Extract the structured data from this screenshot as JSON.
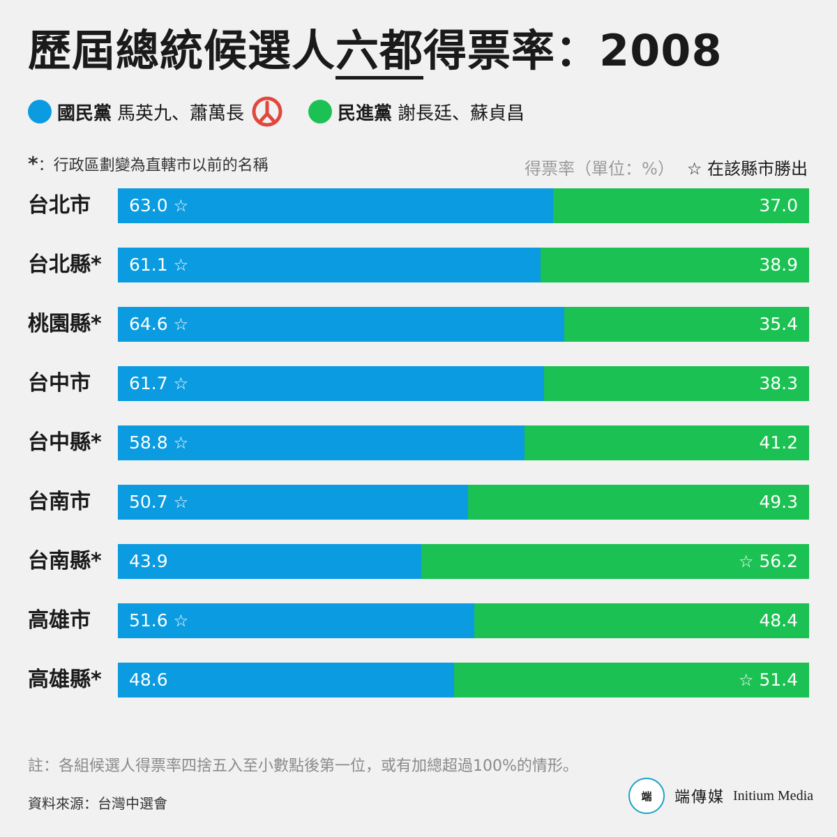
{
  "title": {
    "part1": "歷屆總統候選人",
    "underlined": "六都",
    "part2": "得票率：2008"
  },
  "legend": {
    "kmt": {
      "party": "國民黨",
      "candidates": "馬英九、蕭萬長",
      "color": "#0a9be0"
    },
    "dpp": {
      "party": "民進黨",
      "candidates": "謝長廷、蘇貞昌",
      "color": "#1bc152"
    },
    "winner_icon": "ballot-stamp-icon",
    "winner_icon_color": "#e0483e"
  },
  "note_top": {
    "asterisk": "*",
    "text": "：行政區劃變為直轄市以前的名稱"
  },
  "unit": {
    "label": "得票率（單位：%）",
    "star_note": "☆ 在該縣市勝出"
  },
  "chart_data": {
    "type": "bar",
    "stacked": true,
    "orientation": "horizontal",
    "categories": [
      "台北市",
      "台北縣*",
      "桃園縣*",
      "台中市",
      "台中縣*",
      "台南市",
      "台南縣*",
      "高雄市",
      "高雄縣*"
    ],
    "series": [
      {
        "name": "國民黨",
        "color": "#0a9be0",
        "values": [
          63.0,
          61.1,
          64.6,
          61.7,
          58.8,
          50.7,
          43.9,
          51.6,
          48.6
        ],
        "labels": [
          "63.0",
          "61.1",
          "64.6",
          "61.7",
          "58.8",
          "50.7",
          "43.9",
          "51.6",
          "48.6"
        ]
      },
      {
        "name": "民進黨",
        "color": "#1bc152",
        "values": [
          37.0,
          38.9,
          35.4,
          38.3,
          41.2,
          49.3,
          56.2,
          48.4,
          51.4
        ],
        "labels": [
          "37.0",
          "38.9",
          "35.4",
          "38.3",
          "41.2",
          "49.3",
          "56.2",
          "48.4",
          "51.4"
        ]
      }
    ],
    "winner": [
      "kmt",
      "kmt",
      "kmt",
      "kmt",
      "kmt",
      "kmt",
      "dpp",
      "kmt",
      "dpp"
    ],
    "star_symbol": "☆",
    "xlim": [
      0,
      100
    ]
  },
  "footnote": "註：各組候選人得票率四捨五入至小數點後第一位，或有加總超過100%的情形。",
  "source": "資料來源：台灣中選會",
  "brand": {
    "logo": "端",
    "name_cn": "端傳媒",
    "name_en": "Initium Media"
  }
}
